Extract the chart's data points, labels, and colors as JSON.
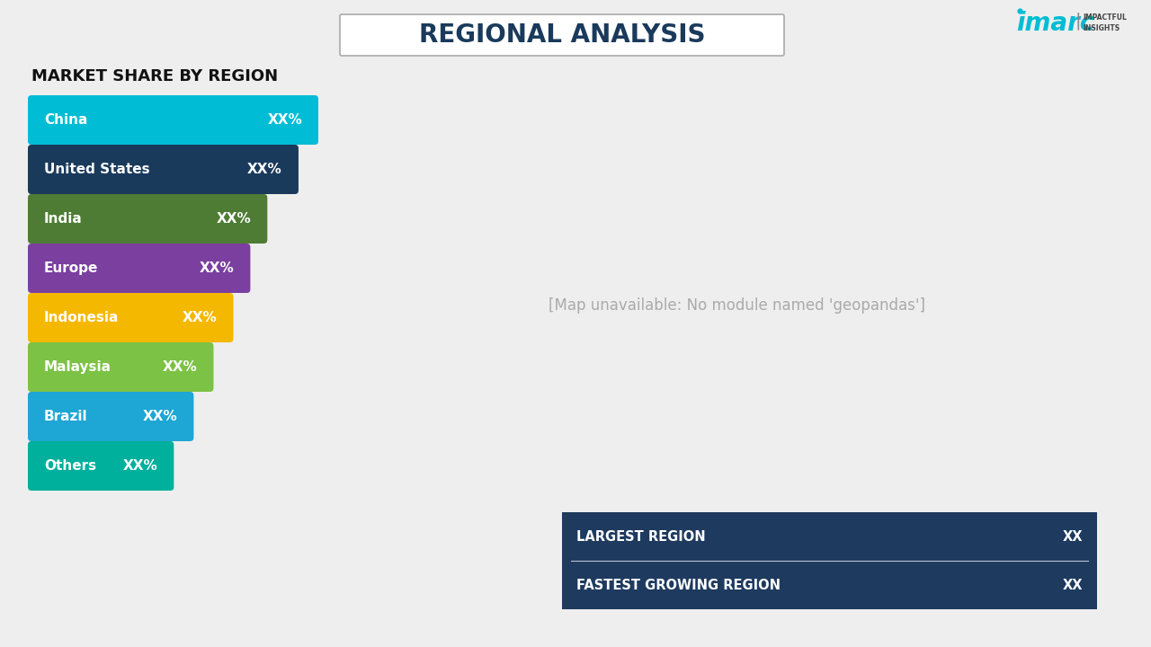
{
  "title": "REGIONAL ANALYSIS",
  "bg_color": "#eeeeee",
  "subtitle": "MARKET SHARE BY REGION",
  "bars": [
    {
      "label": "China",
      "value": 1.0,
      "color": "#00bcd4",
      "text": "XX%"
    },
    {
      "label": "United States",
      "value": 0.93,
      "color": "#1a3a5c",
      "text": "XX%"
    },
    {
      "label": "India",
      "value": 0.82,
      "color": "#4e7c34",
      "text": "XX%"
    },
    {
      "label": "Europe",
      "value": 0.76,
      "color": "#7b3fa0",
      "text": "XX%"
    },
    {
      "label": "Indonesia",
      "value": 0.7,
      "color": "#f5b800",
      "text": "XX%"
    },
    {
      "label": "Malaysia",
      "value": 0.63,
      "color": "#7cc244",
      "text": "XX%"
    },
    {
      "label": "Brazil",
      "value": 0.56,
      "color": "#1ea6d4",
      "text": "XX%"
    },
    {
      "label": "Others",
      "value": 0.49,
      "color": "#00b09c",
      "text": "XX%"
    }
  ],
  "info_box": {
    "color": "#1e3a5f",
    "largest_region": "LARGEST REGION",
    "largest_value": "XX",
    "fastest_region": "FASTEST GROWING REGION",
    "fastest_value": "XX"
  },
  "imarc_color": "#00bcd4",
  "map_land_color": "#c8cdd6",
  "map_border_color": "#4a5a6e",
  "map_bg_color": "#eeeeee"
}
